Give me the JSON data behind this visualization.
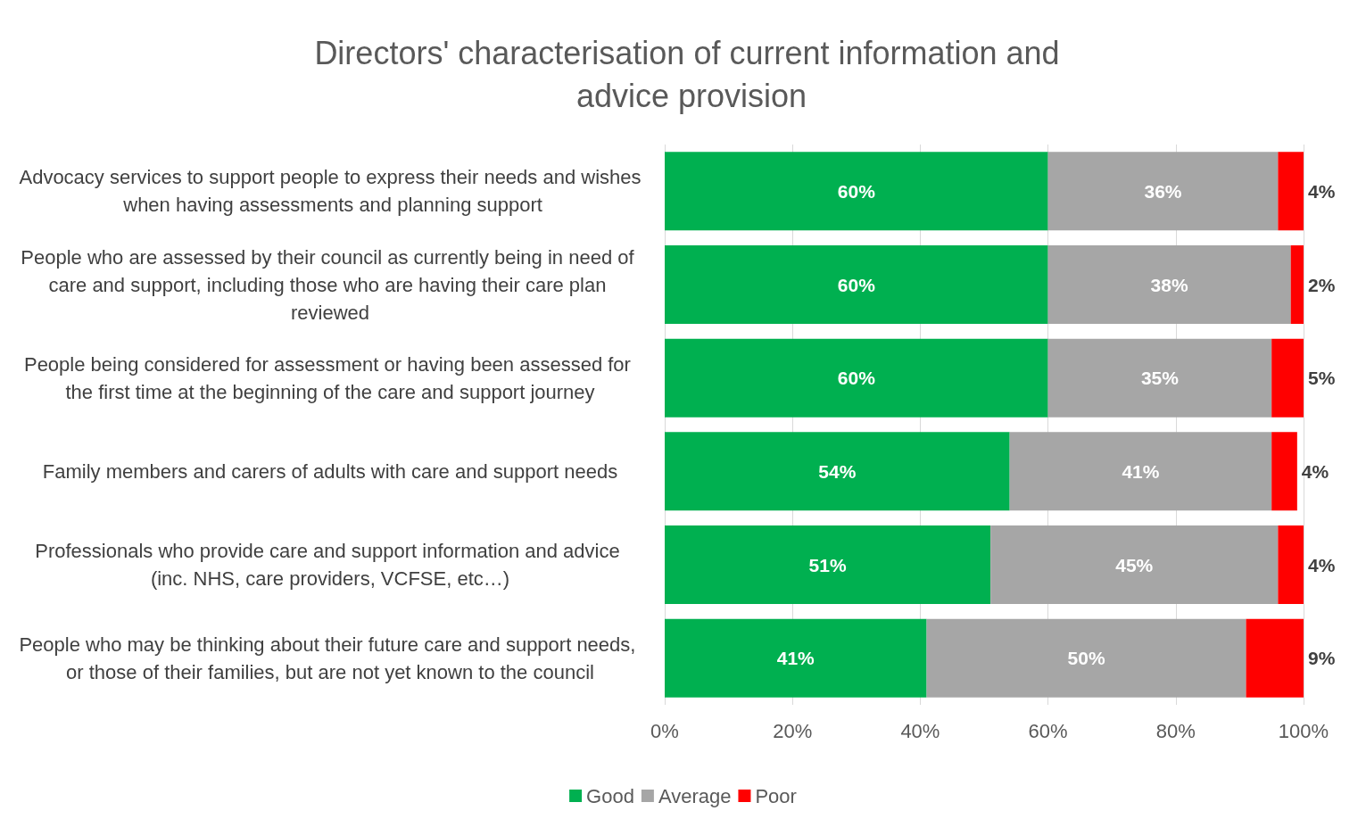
{
  "chart_data": {
    "type": "bar",
    "orientation": "horizontal",
    "stacked": true,
    "title": "Directors' characterisation of current information and advice provision",
    "categories": [
      "Advocacy services to support people to express their needs and wishes when having assessments and planning support",
      "People who are assessed by their council as currently being in need of care and support, including those who are having their care plan reviewed",
      "People being considered for assessment or having been assessed for the first time at the beginning of the care and support journey",
      "Family members and carers of adults with care and support needs",
      "Professionals who provide care and support information and advice (inc. NHS, care providers, VCFSE, etc…)",
      "People who may be thinking about their future care and support needs, or those of their families, but are not yet known to the council"
    ],
    "series": [
      {
        "name": "Good",
        "color": "#00b050",
        "values": [
          60,
          60,
          60,
          54,
          51,
          41
        ],
        "value_labels": [
          "60%",
          "60%",
          "60%",
          "54%",
          "51%",
          "41%"
        ]
      },
      {
        "name": "Average",
        "color": "#a6a6a6",
        "values": [
          36,
          38,
          35,
          41,
          45,
          50
        ],
        "value_labels": [
          "36%",
          "38%",
          "35%",
          "41%",
          "45%",
          "50%"
        ]
      },
      {
        "name": "Poor",
        "color": "#ff0000",
        "values": [
          4,
          2,
          5,
          4,
          4,
          9
        ],
        "value_labels": [
          "4%",
          "2%",
          "5%",
          "4%",
          "4%",
          "9%"
        ]
      }
    ],
    "xlim": [
      0,
      100
    ],
    "xticks": [
      {
        "value": 0,
        "label": "0%"
      },
      {
        "value": 20,
        "label": "20%"
      },
      {
        "value": 40,
        "label": "40%"
      },
      {
        "value": 60,
        "label": "60%"
      },
      {
        "value": 80,
        "label": "80%"
      },
      {
        "value": 100,
        "label": "100%"
      }
    ],
    "grid": "x",
    "legend": "bottom"
  }
}
